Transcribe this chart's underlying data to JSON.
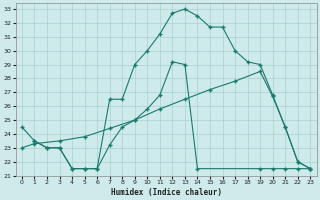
{
  "xlabel": "Humidex (Indice chaleur)",
  "bg_color": "#ceeaea",
  "grid_color": "#aacfcf",
  "line_color": "#1a7a6e",
  "xlim": [
    -0.5,
    23.5
  ],
  "ylim": [
    21,
    33.4
  ],
  "xticks": [
    0,
    1,
    2,
    3,
    4,
    5,
    6,
    7,
    8,
    9,
    10,
    11,
    12,
    13,
    14,
    15,
    16,
    17,
    18,
    19,
    20,
    21,
    22,
    23
  ],
  "yticks": [
    21,
    22,
    23,
    24,
    25,
    26,
    27,
    28,
    29,
    30,
    31,
    32,
    33
  ],
  "curve1_x": [
    0,
    1,
    2,
    3,
    4,
    5,
    6,
    7,
    8,
    9,
    10,
    11,
    12,
    13,
    14,
    15,
    16,
    17,
    18,
    19,
    20,
    21,
    22,
    23
  ],
  "curve1_y": [
    24.5,
    23.5,
    23.0,
    23.0,
    21.5,
    21.5,
    21.5,
    26.5,
    26.5,
    29.0,
    30.0,
    31.2,
    32.7,
    33.0,
    32.5,
    31.7,
    31.7,
    30.0,
    29.2,
    29.0,
    26.8,
    24.5,
    22.0,
    21.5
  ],
  "curve2_x": [
    0,
    1,
    3,
    5,
    7,
    9,
    11,
    13,
    15,
    17,
    19,
    20,
    21,
    22,
    23
  ],
  "curve2_y": [
    23.0,
    23.3,
    23.5,
    23.8,
    24.4,
    25.0,
    25.8,
    26.5,
    27.2,
    27.8,
    28.5,
    26.7,
    24.5,
    22.0,
    21.5
  ],
  "curve3_x": [
    1,
    2,
    3,
    4,
    5,
    6,
    7,
    8,
    9,
    10,
    11,
    12,
    13,
    14,
    19,
    20,
    21,
    22,
    23
  ],
  "curve3_y": [
    23.5,
    23.0,
    23.0,
    21.5,
    21.5,
    21.5,
    23.2,
    24.5,
    25.0,
    25.8,
    26.8,
    29.2,
    29.0,
    21.5,
    21.5,
    21.5,
    21.5,
    21.5,
    21.5
  ]
}
